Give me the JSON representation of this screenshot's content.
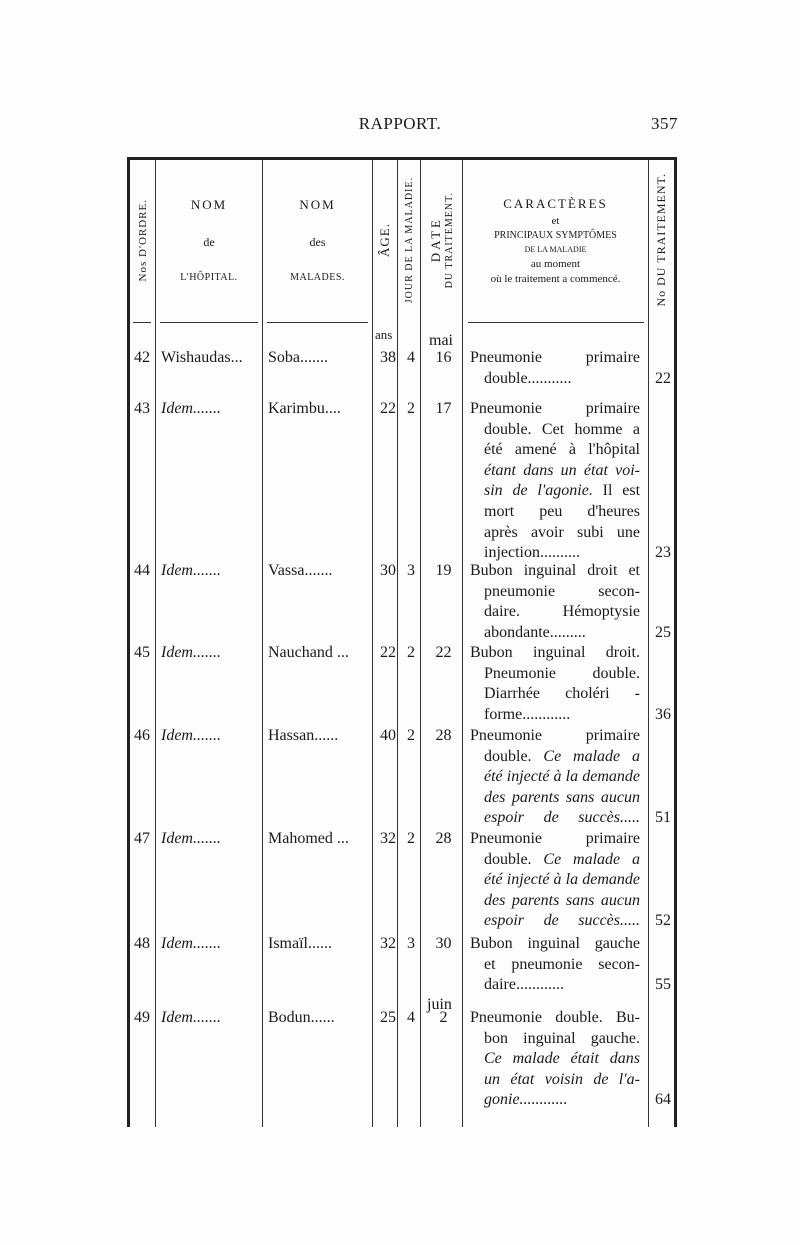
{
  "header": {
    "title": "RAPPORT.",
    "page_number": "357"
  },
  "columns": {
    "ordre": "Nos D'ORDRE.",
    "hopital": [
      "NOM",
      "de",
      "L'HÔPITAL."
    ],
    "malades": [
      "NOM",
      "des",
      "MALADES."
    ],
    "age": "ÂGE.",
    "jour": "JOUR DE LA MALADIE.",
    "date": [
      "DATE",
      "DU TRAITEMENT."
    ],
    "caracteres": [
      "CARACTÈRES",
      "et",
      "PRINCIPAUX SYMPTÔMES",
      "DE LA MALADIE",
      "au moment",
      "où le traitement a commencé."
    ],
    "traitement": "No DU TRAITEMENT."
  },
  "units": {
    "age": "ans",
    "month1": "mai",
    "month2": "juin"
  },
  "rows": [
    {
      "no": "42",
      "hopital": "Wishaudas...",
      "hopital_italic": false,
      "malade": "Soba.......",
      "age": "38",
      "jour": "4",
      "date": "16",
      "traitement": "22",
      "desc": [
        [
          {
            "t": "Pneumonie primaire"
          }
        ],
        [
          {
            "t": "double..........."
          }
        ]
      ]
    },
    {
      "no": "43",
      "hopital": "Idem.......",
      "hopital_italic": true,
      "malade": "Karimbu....",
      "age": "22",
      "jour": "2",
      "date": "17",
      "traitement": "23",
      "desc": [
        [
          {
            "t": "Pneumonie primaire"
          }
        ],
        [
          {
            "t": "double. Cet homme a"
          }
        ],
        [
          {
            "t": "été amené à l'hôpital"
          }
        ],
        [
          {
            "t": "étant dans un état voi-",
            "i": true
          }
        ],
        [
          {
            "t": "sin de l'agonie.",
            "i": true
          },
          {
            "t": " Il est"
          }
        ],
        [
          {
            "t": "mort peu d'heures"
          }
        ],
        [
          {
            "t": "après avoir subi une"
          }
        ],
        [
          {
            "t": "injection.........."
          }
        ]
      ]
    },
    {
      "no": "44",
      "hopital": "Idem.......",
      "hopital_italic": true,
      "malade": "Vassa.......",
      "age": "30",
      "jour": "3",
      "date": "19",
      "traitement": "25",
      "desc": [
        [
          {
            "t": "Bubon inguinal droit et"
          }
        ],
        [
          {
            "t": "pneumonie secon-"
          }
        ],
        [
          {
            "t": "daire. Hémoptysie"
          }
        ],
        [
          {
            "t": "abondante........."
          }
        ]
      ]
    },
    {
      "no": "45",
      "hopital": "Idem.......",
      "hopital_italic": true,
      "malade": "Nauchand ...",
      "age": "22",
      "jour": "2",
      "date": "22",
      "traitement": "36",
      "desc": [
        [
          {
            "t": "Bubon inguinal droit."
          }
        ],
        [
          {
            "t": "Pneumonie double."
          }
        ],
        [
          {
            "t": "Diarrhée choléri -"
          }
        ],
        [
          {
            "t": "forme............"
          }
        ]
      ]
    },
    {
      "no": "46",
      "hopital": "Idem.......",
      "hopital_italic": true,
      "malade": "Hassan......",
      "age": "40",
      "jour": "2",
      "date": "28",
      "traitement": "51",
      "desc": [
        [
          {
            "t": "Pneumonie primaire"
          }
        ],
        [
          {
            "t": "double. "
          },
          {
            "t": "Ce malade a",
            "i": true
          }
        ],
        [
          {
            "t": "été injecté à la demande",
            "i": true
          }
        ],
        [
          {
            "t": "des parents sans aucun",
            "i": true
          }
        ],
        [
          {
            "t": "espoir de succès.....",
            "i": true
          }
        ]
      ]
    },
    {
      "no": "47",
      "hopital": "Idem.......",
      "hopital_italic": true,
      "malade": "Mahomed ...",
      "age": "32",
      "jour": "2",
      "date": "28",
      "traitement": "52",
      "desc": [
        [
          {
            "t": "Pneumonie primaire"
          }
        ],
        [
          {
            "t": "double. "
          },
          {
            "t": "Ce malade a",
            "i": true
          }
        ],
        [
          {
            "t": "été injecté à la demande",
            "i": true
          }
        ],
        [
          {
            "t": "des parents sans aucun",
            "i": true
          }
        ],
        [
          {
            "t": "espoir de succès.....",
            "i": true
          }
        ]
      ]
    },
    {
      "no": "48",
      "hopital": "Idem.......",
      "hopital_italic": true,
      "malade": "Ismaïl......",
      "age": "32",
      "jour": "3",
      "date": "30",
      "traitement": "55",
      "desc": [
        [
          {
            "t": "Bubon inguinal gauche"
          }
        ],
        [
          {
            "t": "et pneumonie secon-"
          }
        ],
        [
          {
            "t": "daire............"
          }
        ]
      ]
    },
    {
      "no": "49",
      "hopital": "Idem.......",
      "hopital_italic": true,
      "malade": "Bodun......",
      "age": "25",
      "jour": "4",
      "date": "2",
      "traitement": "64",
      "desc": [
        [
          {
            "t": "Pneumonie double. Bu-"
          }
        ],
        [
          {
            "t": "bon inguinal gauche."
          }
        ],
        [
          {
            "t": "Ce malade était dans",
            "i": true
          }
        ],
        [
          {
            "t": "un état voisin de l'a-",
            "i": true
          }
        ],
        [
          {
            "t": "gonie............",
            "i": true
          }
        ]
      ]
    }
  ]
}
